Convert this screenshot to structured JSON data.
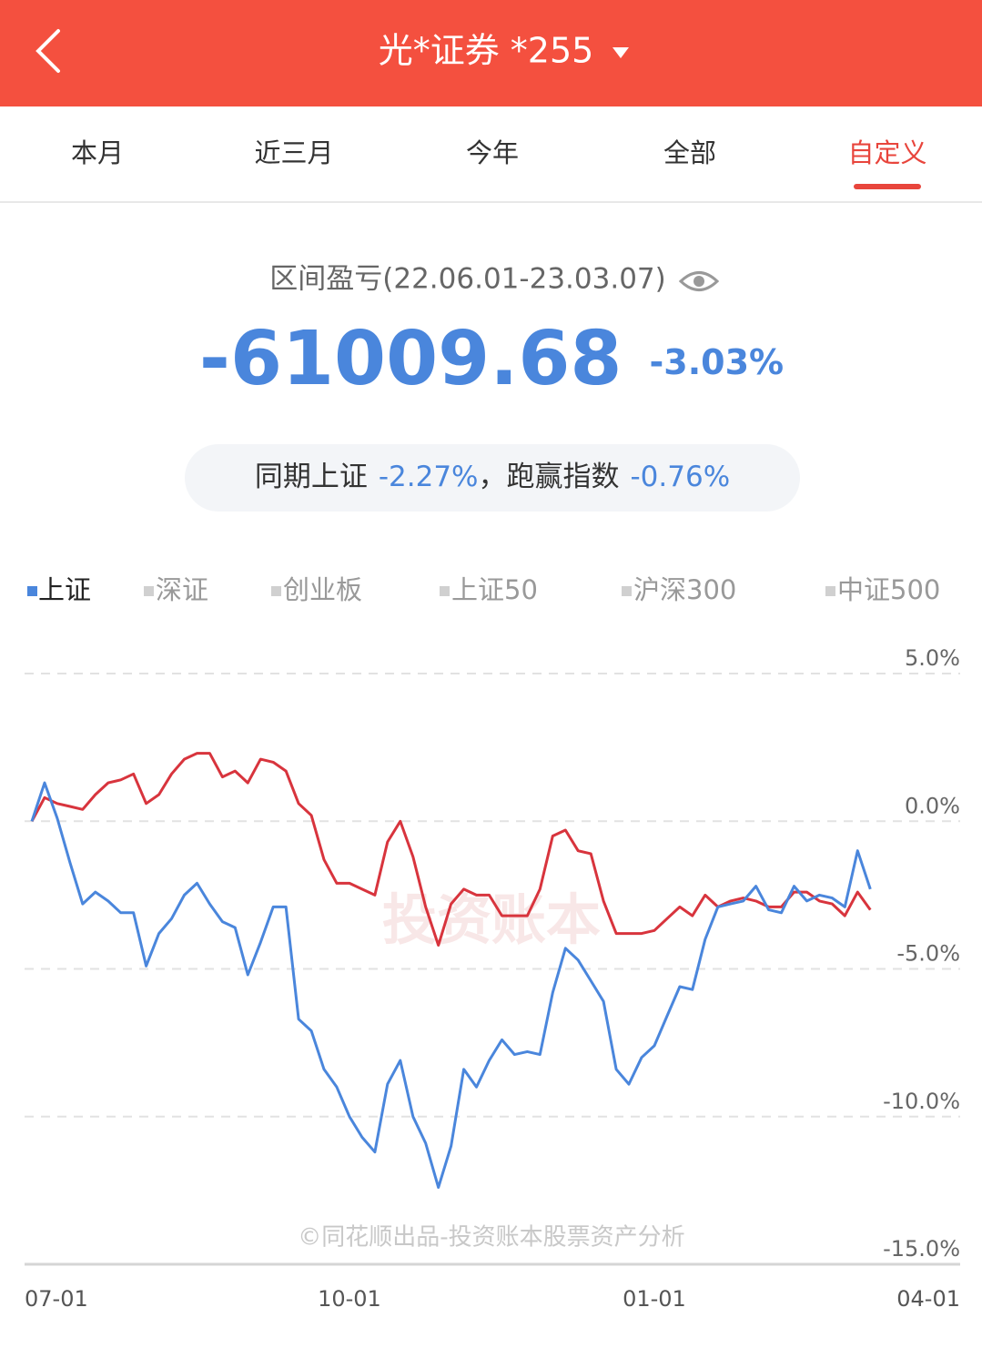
{
  "header": {
    "title": "光*证券 *255"
  },
  "tabs": [
    "本月",
    "近三月",
    "今年",
    "全部",
    "自定义"
  ],
  "summary": {
    "label": "区间盈亏(22.06.01-23.03.07)",
    "amount": "-61009.68",
    "percent": "-3.03%"
  },
  "compare": {
    "index_label": "同期上证",
    "index_change": "-2.27%",
    "beat_label": "，跑赢指数",
    "beat_change": "-0.76%"
  },
  "other_indices": [
    "深证",
    "创业板",
    "上证50",
    "沪深300",
    "中证500"
  ],
  "watermark": "投资账本",
  "footer_note": "©同花顺出品-投资账本股票资产分析",
  "chart_data": {
    "type": "line",
    "categories": [
      "07-01",
      null,
      null,
      null,
      null,
      null,
      null,
      null,
      null,
      null,
      null,
      null,
      null,
      null,
      null,
      null,
      null,
      null,
      null,
      null,
      null,
      null,
      null,
      null,
      null,
      "10-01",
      null,
      null,
      null,
      null,
      null,
      null,
      null,
      null,
      null,
      null,
      null,
      null,
      null,
      null,
      null,
      null,
      null,
      null,
      null,
      null,
      null,
      null,
      null,
      "01-01",
      null,
      null,
      null,
      null,
      null,
      null,
      null,
      null,
      null,
      null,
      null,
      null,
      null,
      null,
      null,
      null,
      null,
      null,
      null,
      null,
      null,
      null,
      "04-01"
    ],
    "series": [
      {
        "name": "上证",
        "color": "#4a86dc",
        "values": [
          0.0,
          1.3,
          0.1,
          -1.4,
          -2.8,
          -2.4,
          -2.7,
          -3.1,
          -3.1,
          -4.9,
          -3.8,
          -3.3,
          -2.5,
          -2.1,
          -2.8,
          -3.4,
          -3.6,
          -5.2,
          -4.1,
          -2.9,
          -2.9,
          -6.7,
          -7.1,
          -8.4,
          -9.0,
          -10.0,
          -10.7,
          -11.2,
          -8.9,
          -8.1,
          -10.0,
          -10.9,
          -12.4,
          -11.0,
          -8.4,
          -9.0,
          -8.1,
          -7.4,
          -7.9,
          -7.8,
          -7.9,
          -5.8,
          -4.3,
          -4.7,
          -5.4,
          -6.1,
          -8.4,
          -8.9,
          -8.0,
          -7.6,
          -6.6,
          -5.6,
          -5.7,
          -4.0,
          -2.9,
          -2.8,
          -2.7,
          -2.2,
          -3.0,
          -3.1,
          -2.2,
          -2.7,
          -2.5,
          -2.6,
          -2.9,
          -1.0,
          -2.3,
          null,
          null,
          null,
          null,
          null,
          null
        ]
      },
      {
        "color": "#d8343d",
        "values": [
          0.0,
          0.8,
          0.6,
          0.5,
          0.4,
          0.9,
          1.3,
          1.4,
          1.6,
          0.6,
          0.9,
          1.6,
          2.1,
          2.3,
          2.3,
          1.5,
          1.7,
          1.3,
          2.1,
          2.0,
          1.7,
          0.6,
          0.2,
          -1.3,
          -2.1,
          -2.1,
          -2.3,
          -2.5,
          -0.7,
          0.0,
          -1.2,
          -2.9,
          -4.2,
          -2.8,
          -2.3,
          -2.5,
          -2.5,
          -3.2,
          -3.2,
          -3.2,
          -2.3,
          -0.5,
          -0.3,
          -1.0,
          -1.1,
          -2.7,
          -3.8,
          -3.8,
          -3.8,
          -3.7,
          -3.3,
          -2.9,
          -3.2,
          -2.5,
          -2.9,
          -2.7,
          -2.6,
          -2.7,
          -2.9,
          -2.9,
          -2.4,
          -2.4,
          -2.7,
          -2.8,
          -3.2,
          -2.4,
          -3.0,
          null,
          null,
          null,
          null,
          null,
          null
        ]
      }
    ],
    "ylim": [
      -15,
      5
    ],
    "yticks": [
      {
        "value": 5,
        "label": "5.0%"
      },
      {
        "value": 0,
        "label": "0.0%"
      },
      {
        "value": -5,
        "label": "-5.0%"
      },
      {
        "value": -10,
        "label": "-10.0%"
      },
      {
        "value": -15,
        "label": "-15.0%"
      }
    ],
    "grid": true
  }
}
